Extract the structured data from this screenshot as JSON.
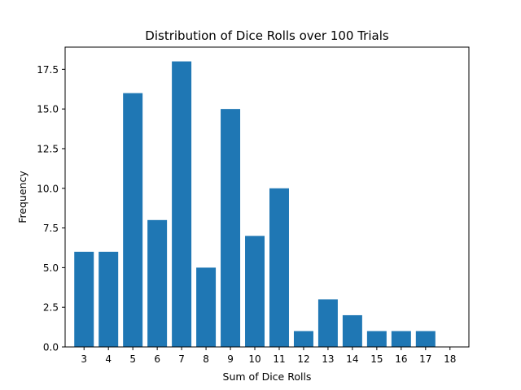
{
  "chart_data": {
    "type": "bar",
    "title": "Distribution of Dice Rolls over 100 Trials",
    "xlabel": "Sum of Dice Rolls",
    "ylabel": "Frequency",
    "categories": [
      "3",
      "4",
      "5",
      "6",
      "7",
      "8",
      "9",
      "10",
      "11",
      "12",
      "13",
      "14",
      "15",
      "16",
      "17",
      "18"
    ],
    "values": [
      6,
      6,
      16,
      8,
      18,
      5,
      15,
      7,
      10,
      1,
      3,
      2,
      1,
      1,
      1,
      0
    ],
    "ylim": [
      0,
      18.9
    ],
    "yticks": [
      "0.0",
      "2.5",
      "5.0",
      "7.5",
      "10.0",
      "12.5",
      "15.0",
      "17.5"
    ],
    "bar_color": "#1f77b4",
    "grid": false,
    "legend": "none"
  }
}
